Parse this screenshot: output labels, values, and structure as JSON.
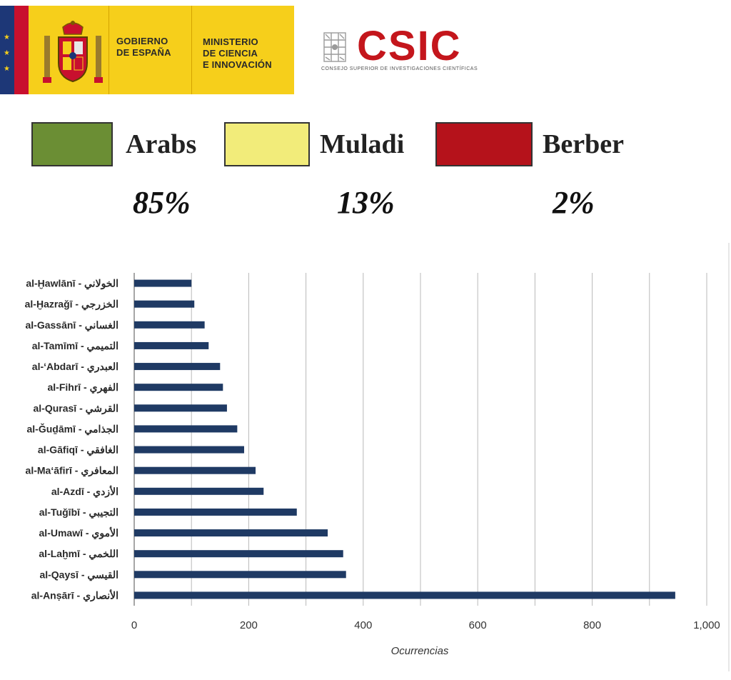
{
  "header": {
    "gobierno_line1": "GOBIERNO",
    "gobierno_line2": "DE ESPAÑA",
    "ministerio_line1": "MINISTERIO",
    "ministerio_line2": "DE CIENCIA",
    "ministerio_line3": "E INNOVACIÓN",
    "csic_word": "CSIC",
    "csic_subtitle": "CONSEJO SUPERIOR DE INVESTIGACIONES CIENTÍFICAS"
  },
  "legend": [
    {
      "label": "Arabs",
      "percent": "85%",
      "color": "#6b8e34"
    },
    {
      "label": "Muladi",
      "percent": "13%",
      "color": "#f2ec7a"
    },
    {
      "label": "Berber",
      "percent": "2%",
      "color": "#b5121b"
    }
  ],
  "colors": {
    "bar": "#1f3a64",
    "gov_yellow": "#f6cf1b",
    "csic_red": "#c4161c"
  },
  "chart_data": {
    "type": "bar",
    "orientation": "horizontal",
    "xlabel": "Ocurrencias",
    "ylabel": "",
    "xlim": [
      0,
      1000
    ],
    "xticks": [
      "0",
      "200",
      "400",
      "600",
      "800",
      "1,000"
    ],
    "grid": true,
    "categories": [
      "al-Ḫawlānī - الخولاني",
      "al-Ḫazraǧī - الخزرجي",
      "al-Gassānī - الغساني",
      "al-Tamīmī - التميمي",
      "al-ʻAbdarī - العبدري",
      "al-Fihrī - الفهري",
      "al-Qurasī - القرشي",
      "al-Ǧuḏāmī - الجذامي",
      "al-Gāfiqī - الغافقي",
      "al-Maʻāfirī - المعافري",
      "al-Azdī - الأزدي",
      "al-Tuǧībī - التجيبي",
      "al-Umawī - الأموي",
      "al-Laḫmī - اللخمي",
      "al-Qaysī - القيسي",
      "al-Anṣārī - الأنصاري"
    ],
    "values": [
      100,
      105,
      123,
      130,
      150,
      155,
      162,
      180,
      192,
      212,
      226,
      284,
      338,
      365,
      370,
      945
    ]
  }
}
